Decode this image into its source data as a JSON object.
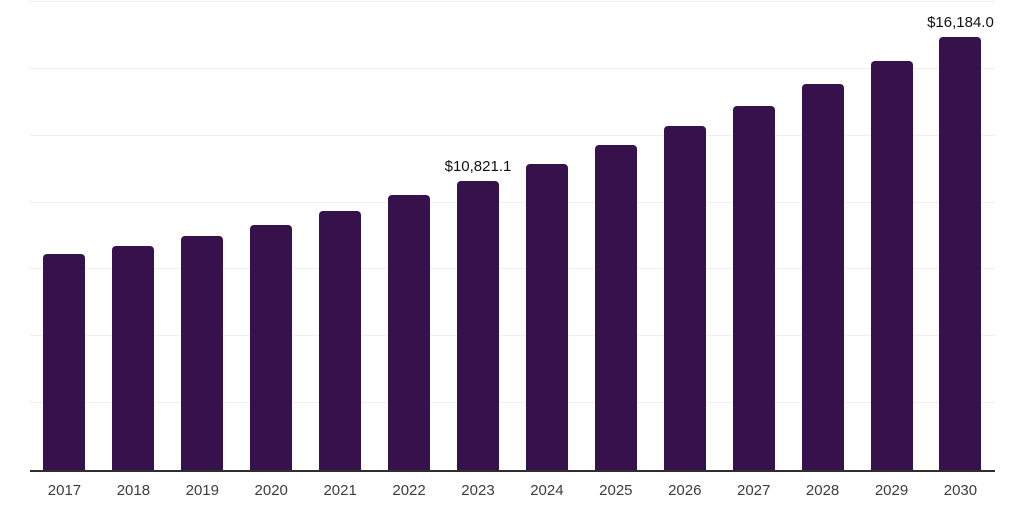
{
  "chart_data": {
    "type": "bar",
    "title": "",
    "xlabel": "",
    "ylabel": "",
    "categories": [
      "2017",
      "2018",
      "2019",
      "2020",
      "2021",
      "2022",
      "2023",
      "2024",
      "2025",
      "2026",
      "2027",
      "2028",
      "2029",
      "2030"
    ],
    "values": [
      8075,
      8370,
      8740,
      9160,
      9685,
      10280,
      10821.1,
      11460,
      12145,
      12860,
      13620,
      14425,
      15285,
      16184.0
    ],
    "data_labels": [
      "",
      "",
      "",
      "",
      "",
      "",
      "$10,821.1",
      "",
      "",
      "",
      "",
      "",
      "",
      "$16,184.0"
    ],
    "ylim": [
      0,
      17500
    ],
    "gridline_interval": 2500,
    "grid": true,
    "legend": false,
    "colors": {
      "bar": "#36114c",
      "gridline": "#efefef",
      "axis_line": "#2e2e2e",
      "data_label_text": "#111111",
      "tick_label_text": "#3d3d3d"
    }
  }
}
